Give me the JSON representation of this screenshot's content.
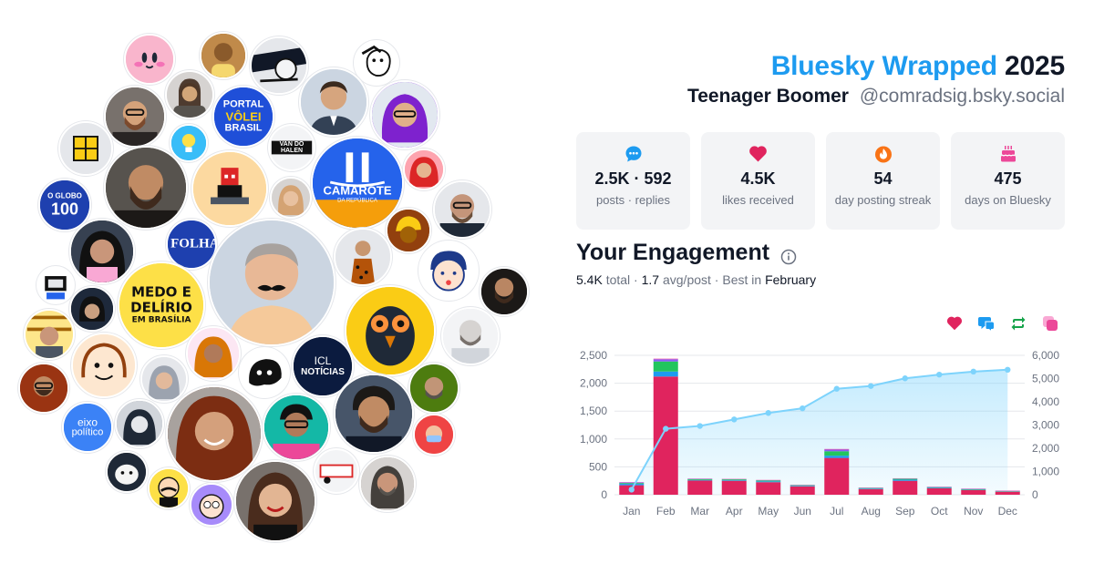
{
  "header": {
    "brand": "Bluesky Wrapped",
    "year": "2025",
    "display_name": "Teenager Boomer",
    "handle": "@comradsig.bsky.social"
  },
  "stats": [
    {
      "icon": "speech-bubble-icon",
      "value": "2.5K · 592",
      "label": "posts · replies",
      "color": "#1d9bf0"
    },
    {
      "icon": "heart-icon",
      "value": "4.5K",
      "label": "likes received",
      "color": "#e0245e"
    },
    {
      "icon": "flame-icon",
      "value": "54",
      "label": "day posting streak",
      "color": "#f97316"
    },
    {
      "icon": "cake-icon",
      "value": "475",
      "label": "days on Bluesky",
      "color": "#ec4899"
    }
  ],
  "engagement": {
    "title": "Your Engagement",
    "total_value": "5.4K",
    "total_label": "total",
    "avg_value": "1.7",
    "avg_label": "avg/post",
    "best_label": "Best in",
    "best_value": "February"
  },
  "legend": [
    {
      "icon": "heart-icon",
      "color": "#e0245e"
    },
    {
      "icon": "reply-icon",
      "color": "#1d9bf0"
    },
    {
      "icon": "repost-icon",
      "color": "#16a34a"
    },
    {
      "icon": "quote-icon",
      "color": "#ec4899"
    }
  ],
  "avatars": {
    "portal": [
      "PORTAL",
      "VÔLEI",
      "BRASIL"
    ],
    "camarote": [
      "CAMAROTE",
      "DA REPÚBLICA"
    ],
    "oglobo": [
      "O GLOBO",
      "100"
    ],
    "folha": "FOLHA",
    "medo": [
      "MEDO E",
      "DELÍRIO",
      "EM BRASÍLIA"
    ],
    "icl": [
      "ICL",
      "NOTÍCIAS"
    ],
    "eixo": [
      "eixo",
      "político"
    ],
    "vanhalen": "VAN DO HALEN"
  },
  "chart_data": {
    "type": "bar",
    "categories": [
      "Jan",
      "Feb",
      "Mar",
      "Apr",
      "May",
      "Jun",
      "Jul",
      "Aug",
      "Sep",
      "Oct",
      "Nov",
      "Dec"
    ],
    "series": [
      {
        "values": [
          170,
          2120,
          255,
          250,
          225,
          150,
          660,
          100,
          250,
          115,
          85,
          55
        ],
        "color": "#e0245e"
      },
      {
        "values": [
          25,
          90,
          10,
          10,
          15,
          10,
          40,
          10,
          20,
          10,
          5,
          5
        ],
        "color": "#1d9bf0"
      },
      {
        "values": [
          15,
          180,
          15,
          15,
          15,
          10,
          80,
          10,
          15,
          10,
          10,
          5
        ],
        "color": "#22c55e"
      },
      {
        "values": [
          10,
          40,
          5,
          5,
          5,
          5,
          30,
          5,
          5,
          5,
          5,
          5
        ],
        "color": "#8b5cf6"
      },
      {
        "values": [
          5,
          10,
          5,
          5,
          5,
          5,
          10,
          5,
          5,
          5,
          5,
          5
        ],
        "color": "#ec4899"
      }
    ],
    "cumulative": [
      220,
      2840,
      2960,
      3240,
      3520,
      3720,
      4560,
      4680,
      5010,
      5170,
      5300,
      5380
    ],
    "left_axis": {
      "ticks": [
        0,
        500,
        1000,
        1500,
        2000,
        2500
      ],
      "labels": [
        "0",
        "500",
        "1,000",
        "1,500",
        "2,000",
        "2,500"
      ],
      "max": 2500
    },
    "right_axis": {
      "ticks": [
        0,
        1000,
        2000,
        3000,
        4000,
        5000,
        6000
      ],
      "labels": [
        "0",
        "1,000",
        "2,000",
        "3,000",
        "4,000",
        "5,000",
        "6,000"
      ],
      "max": 6000
    },
    "line_color": "#7dd3fc",
    "grid": true
  }
}
